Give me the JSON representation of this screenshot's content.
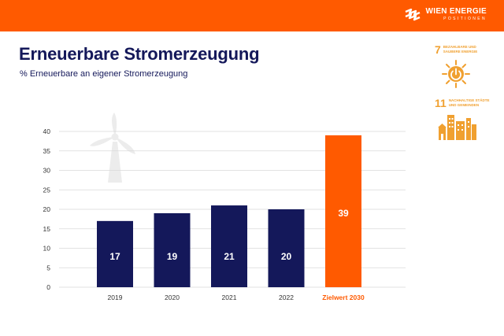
{
  "header": {
    "brand_name": "WIEN ENERGIE",
    "brand_sub": "POSITIONEN"
  },
  "sdg_goals": [
    {
      "number": "7",
      "label": "BEZAHLBARE UND SAUBERE ENERGIE"
    },
    {
      "number": "11",
      "label": "NACHHALTIGE STÄDTE UND GEMEINDEN"
    }
  ],
  "colors": {
    "brand": "#ff5a00",
    "bar": "#14185a",
    "target": "#ff5a00",
    "sdg": "#f0a030",
    "axis_text": "#333333"
  },
  "chart_data": {
    "type": "bar",
    "title": "Erneuerbare Stromerzeugung",
    "subtitle": "% Erneuerbare an eigener Stromerzeugung",
    "categories": [
      "2019",
      "2020",
      "2021",
      "2022",
      "Zielwert 2030"
    ],
    "values": [
      17,
      19,
      21,
      20,
      39
    ],
    "data_labels": [
      "17",
      "19",
      "21",
      "20",
      "39"
    ],
    "highlight_index": 4,
    "xlabel": "",
    "ylabel": "",
    "ylim": [
      0,
      40
    ],
    "yticks": [
      0,
      5,
      10,
      15,
      20,
      25,
      30,
      35,
      40
    ],
    "grid": true
  }
}
